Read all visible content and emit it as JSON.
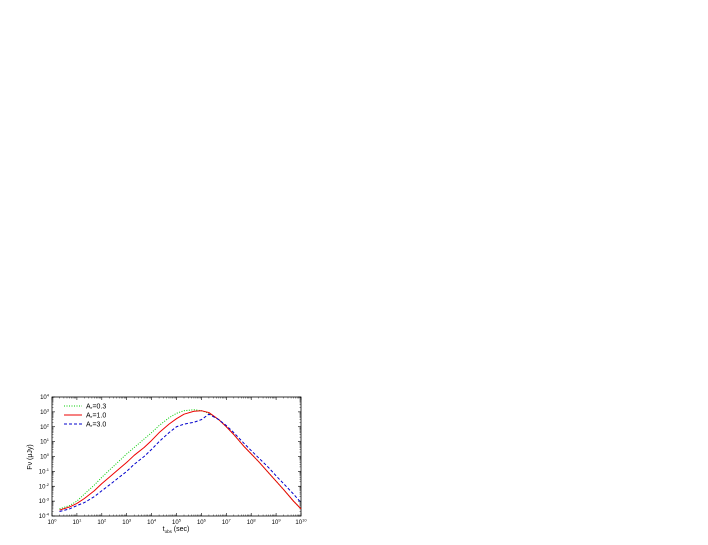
{
  "chart_data": {
    "type": "line",
    "title": "",
    "xlabel": "t_obs (sec)",
    "ylabel": "Fν (μJy)",
    "xscale": "log",
    "yscale": "log",
    "xlim": [
      1,
      10000000000
    ],
    "ylim": [
      0.0001,
      10000
    ],
    "x_ticks": [
      "10^0",
      "10^1",
      "10^2",
      "10^3",
      "10^4",
      "10^5",
      "10^6",
      "10^7",
      "10^8",
      "10^9",
      "10^10"
    ],
    "y_ticks": [
      "10^-4",
      "10^-3",
      "10^-2",
      "10^-1",
      "10^0",
      "10^1",
      "10^2",
      "10^3",
      "10^4"
    ],
    "grid": false,
    "legend_position": "top-left",
    "series": [
      {
        "name": "A_*=0.3",
        "color": "#00cc00",
        "dash": "dotted",
        "x": [
          2,
          5,
          10,
          20,
          50,
          100,
          200,
          500,
          1000,
          2000,
          5000,
          10000,
          20000,
          50000,
          100000,
          200000,
          500000,
          1000000,
          2000000,
          5000000,
          10000000,
          20000000,
          50000000,
          100000000,
          200000000,
          500000000,
          1000000000,
          2000000000,
          5000000000,
          10000000000
        ],
        "y": [
          0.0003,
          0.0005,
          0.001,
          0.003,
          0.012,
          0.04,
          0.12,
          0.5,
          1.5,
          4,
          15,
          40,
          120,
          400,
          800,
          1200,
          1400,
          1200,
          800,
          300,
          100,
          30,
          5,
          1.5,
          0.45,
          0.08,
          0.022,
          0.006,
          0.001,
          0.0003
        ]
      },
      {
        "name": "A_*=1.0",
        "color": "#ee0000",
        "dash": "solid",
        "x": [
          2,
          5,
          10,
          20,
          50,
          100,
          200,
          500,
          1000,
          2000,
          5000,
          10000,
          20000,
          50000,
          100000,
          200000,
          500000,
          1000000,
          2000000,
          5000000,
          10000000,
          20000000,
          50000000,
          100000000,
          200000000,
          500000000,
          1000000000,
          2000000000,
          5000000000,
          10000000000
        ],
        "y": [
          0.00025,
          0.0004,
          0.0007,
          0.0015,
          0.005,
          0.015,
          0.04,
          0.15,
          0.4,
          1.2,
          4,
          12,
          40,
          150,
          350,
          700,
          1100,
          1200,
          900,
          300,
          100,
          30,
          5,
          1.5,
          0.45,
          0.08,
          0.022,
          0.006,
          0.001,
          0.0003
        ]
      },
      {
        "name": "A_*=3.0",
        "color": "#0000cc",
        "dash": "dashed",
        "x": [
          2,
          5,
          10,
          20,
          50,
          100,
          200,
          500,
          1000,
          2000,
          5000,
          10000,
          20000,
          50000,
          100000,
          200000,
          500000,
          1000000,
          2000000,
          5000000,
          10000000,
          20000000,
          50000000,
          100000000,
          200000000,
          500000000,
          1000000000,
          2000000000,
          5000000000,
          10000000000
        ],
        "y": [
          0.0002,
          0.0003,
          0.0005,
          0.0008,
          0.002,
          0.005,
          0.012,
          0.04,
          0.1,
          0.3,
          1,
          3,
          10,
          40,
          100,
          150,
          200,
          300,
          700,
          300,
          120,
          40,
          8,
          2.5,
          0.8,
          0.18,
          0.05,
          0.015,
          0.003,
          0.0008
        ]
      }
    ]
  }
}
